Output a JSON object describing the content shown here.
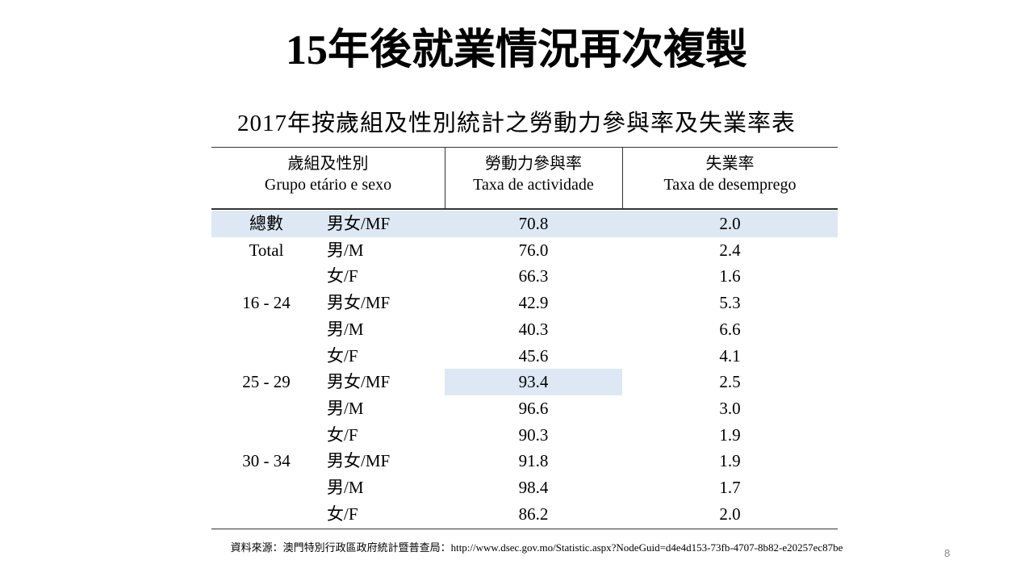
{
  "header": {
    "title": "15年後就業情況再次複製"
  },
  "table": {
    "caption": "2017年按歲組及性別統計之勞動力參與率及失業率表",
    "columns": [
      {
        "zh": "歲組及性別",
        "pt": "Grupo etário e sexo"
      },
      {
        "zh": "勞動力參與率",
        "pt": "Taxa de actividade"
      },
      {
        "zh": "失業率",
        "pt": "Taxa de desemprego"
      }
    ],
    "rows": [
      {
        "group": "總數",
        "sex": "男女/MF",
        "activity": "70.8",
        "unemployment": "2.0"
      },
      {
        "group": "Total",
        "sex": "男/M",
        "activity": "76.0",
        "unemployment": "2.4"
      },
      {
        "sex": "女/F",
        "activity": "66.3",
        "unemployment": "1.6"
      },
      {
        "group": "16 - 24",
        "sex": "男女/MF",
        "activity": "42.9",
        "unemployment": "5.3"
      },
      {
        "sex": "男/M",
        "activity": "40.3",
        "unemployment": "6.6"
      },
      {
        "sex": "女/F",
        "activity": "45.6",
        "unemployment": "4.1"
      },
      {
        "group": "25 - 29",
        "sex": "男女/MF",
        "activity": "93.4",
        "unemployment": "2.5"
      },
      {
        "sex": "男/M",
        "activity": "96.6",
        "unemployment": "3.0"
      },
      {
        "sex": "女/F",
        "activity": "90.3",
        "unemployment": "1.9"
      },
      {
        "group": "30 - 34",
        "sex": "男女/MF",
        "activity": "91.8",
        "unemployment": "1.9"
      },
      {
        "sex": "男/M",
        "activity": "98.4",
        "unemployment": "1.7"
      },
      {
        "sex": "女/F",
        "activity": "86.2",
        "unemployment": "2.0"
      }
    ]
  },
  "footer": {
    "source": "資料來源：澳門特別行政區政府統計暨普查局：http://www.dsec.gov.mo/Statistic.aspx?NodeGuid=d4e4d153-73fb-4707-8b82-e20257ec87be",
    "page": "8"
  }
}
